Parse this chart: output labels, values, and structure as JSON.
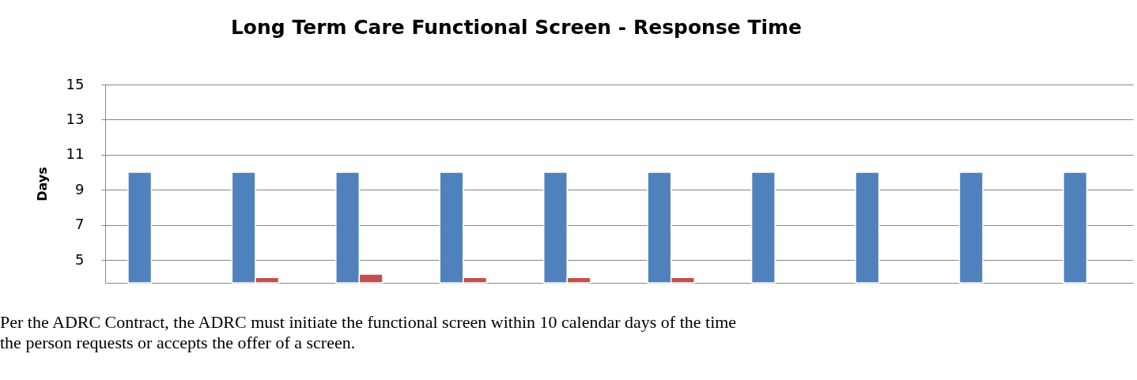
{
  "chart_data": {
    "type": "bar",
    "title": "Long Term Care Functional Screen - Response Time",
    "ylabel": "Days",
    "categories": [
      null,
      null,
      null,
      null,
      null,
      null,
      null,
      null,
      null,
      null
    ],
    "series": [
      {
        "color": "#4f81bd",
        "values": [
          10,
          10,
          10,
          10,
          10,
          10,
          10,
          10,
          10,
          10
        ]
      },
      {
        "color": "#c0504d",
        "values": [
          null,
          4,
          4.2,
          4,
          4,
          4,
          null,
          null,
          null,
          null
        ]
      }
    ],
    "ylim": [
      3.7,
      15
    ],
    "yticks": [
      5,
      7,
      9,
      11,
      13,
      15
    ],
    "grid": "y",
    "tick_labels": "y",
    "annotations": [
      "Per the ADRC Contract, the ADRC must initiate the functional screen within 10 calendar days of the time the person requests or accepts the offer of a screen."
    ]
  }
}
